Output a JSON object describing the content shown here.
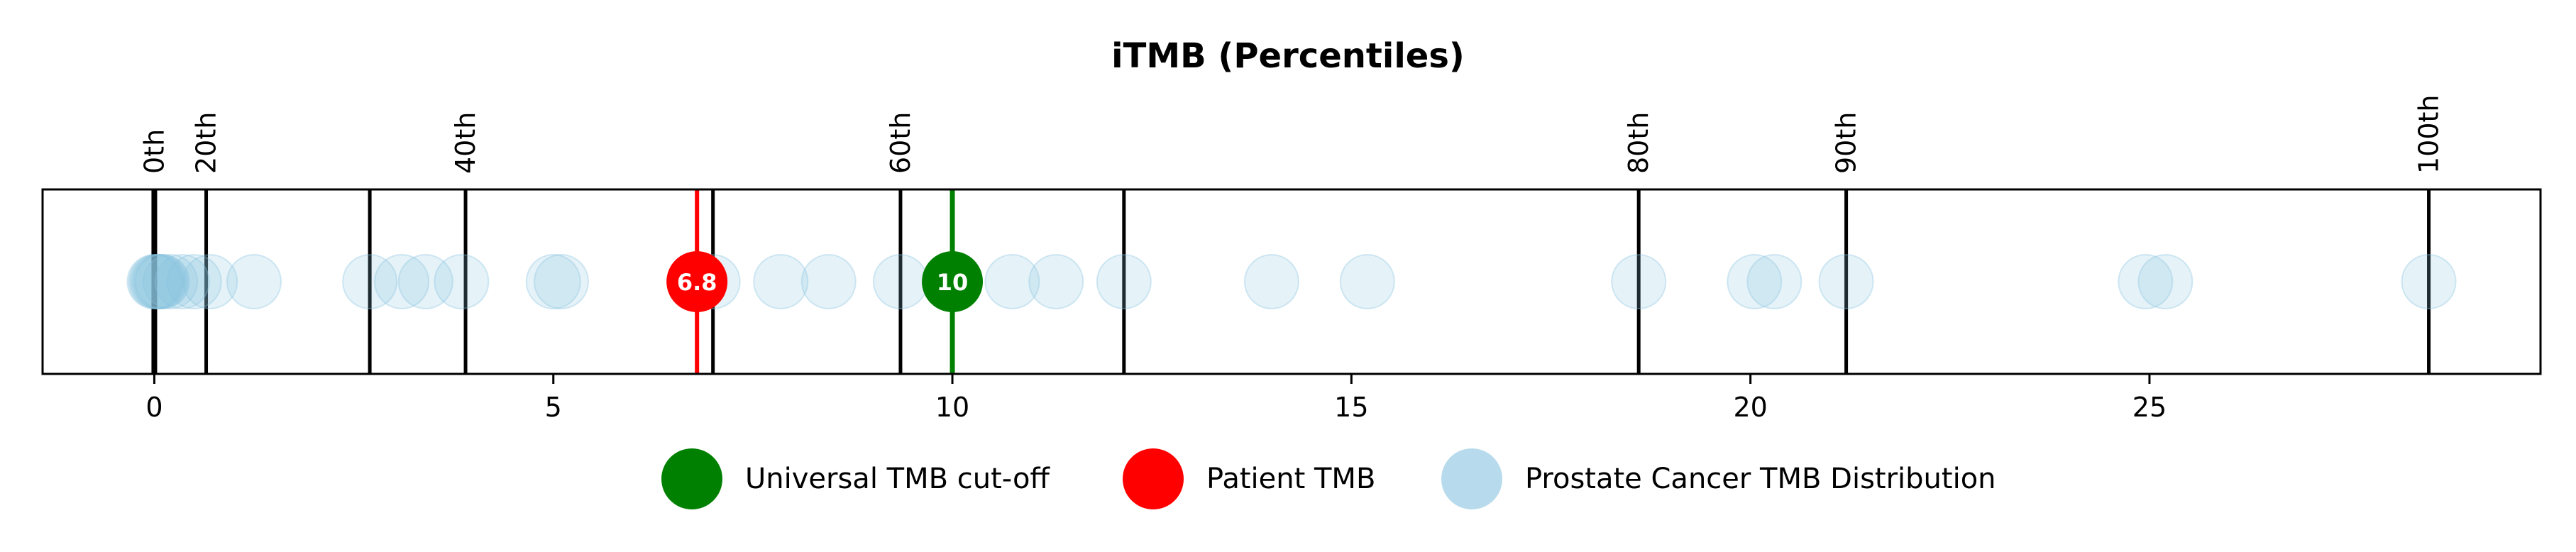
{
  "chart_data": {
    "type": "scatter",
    "title": "iTMB (Percentiles)",
    "xlabel": "",
    "ylabel": "",
    "xlim": [
      -1.4,
      29.9
    ],
    "x_ticks": [
      0,
      5,
      10,
      15,
      20,
      25
    ],
    "grid": false,
    "legend_position": "bottom",
    "percentiles": [
      {
        "x": 0.0,
        "label": "0th"
      },
      {
        "x": 0.65,
        "label": "20th"
      },
      {
        "x": 2.7,
        "label": "40th"
      },
      {
        "x": 3.9,
        "label": "40th"
      },
      {
        "x": 7.0,
        "label": "60th"
      },
      {
        "x": 9.35,
        "label": "60th"
      },
      {
        "x": 12.15,
        "label": "80th"
      },
      {
        "x": 18.6,
        "label": "80th"
      },
      {
        "x": 21.2,
        "label": "90th"
      },
      {
        "x": 28.5,
        "label": "100th"
      }
    ],
    "distribution_values": [
      0.0,
      0.02,
      0.04,
      0.06,
      0.08,
      0.1,
      0.2,
      0.35,
      0.5,
      0.7,
      1.25,
      2.7,
      3.1,
      3.4,
      3.85,
      5.0,
      5.1,
      7.0,
      7.85,
      8.45,
      9.35,
      10.75,
      11.3,
      12.15,
      14.0,
      15.2,
      18.6,
      20.05,
      20.3,
      21.2,
      24.95,
      25.2,
      28.5
    ],
    "patient_tmb": 6.8,
    "universal_cutoff": 10,
    "series": [
      {
        "name": "Universal TMB cut-off",
        "value": 10,
        "color": "#008000"
      },
      {
        "name": "Patient TMB",
        "value": 6.8,
        "color": "#ff0000"
      },
      {
        "name": "Prostate Cancer TMB Distribution",
        "color": "#87c3e0"
      }
    ]
  },
  "labels": {
    "patient_marker": "6.8",
    "cutoff_marker": "10"
  }
}
